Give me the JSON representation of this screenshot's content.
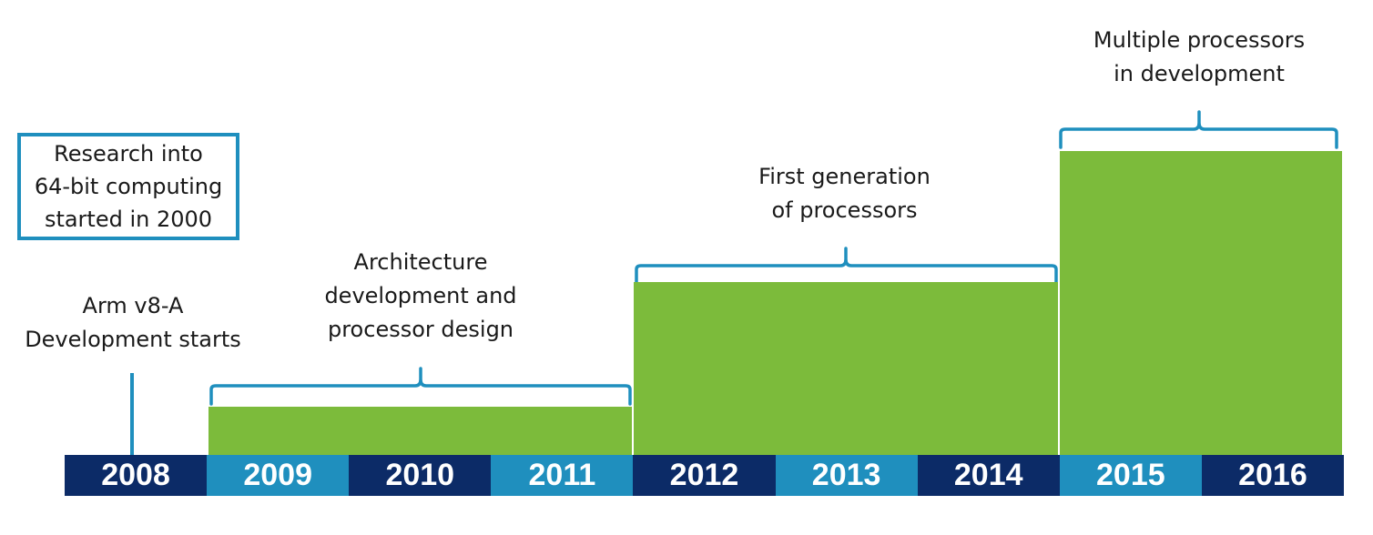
{
  "callout": {
    "text": "Research into\n64-bit computing\nstarted in 2000"
  },
  "milestone": {
    "text": "Arm v8-A\nDevelopment starts"
  },
  "phases": [
    {
      "label": "Architecture\ndevelopment and\nprocessor design",
      "start_year": "2009",
      "end_year": "2011",
      "level": 1
    },
    {
      "label": "First generation\nof processors",
      "start_year": "2012",
      "end_year": "2014",
      "level": 2
    },
    {
      "label": "Multiple processors\nin development",
      "start_year": "2015",
      "end_year": "2016",
      "level": 3
    }
  ],
  "years": [
    "2008",
    "2009",
    "2010",
    "2011",
    "2012",
    "2013",
    "2014",
    "2015",
    "2016"
  ],
  "colors": {
    "dark_blue": "#0c2b67",
    "light_blue": "#1f8fbe",
    "green": "#7cbb3b",
    "accent": "#1f8fbe"
  }
}
